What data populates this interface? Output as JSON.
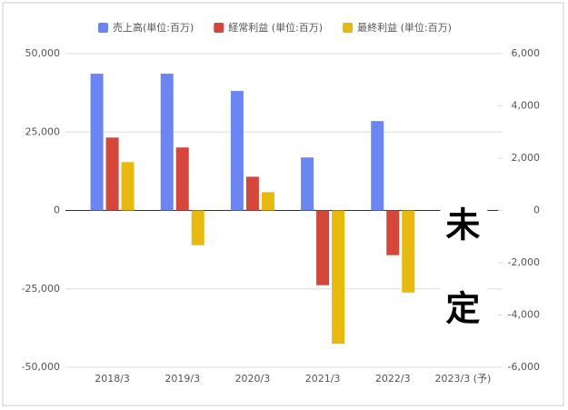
{
  "chart_data": {
    "type": "bar",
    "categories": [
      "2018/3",
      "2019/3",
      "2020/3",
      "2021/3",
      "2022/3",
      "2023/3 (予)"
    ],
    "series": [
      {
        "name": "売上高(単位:百万)",
        "color": "#6b86f0",
        "values": [
          43600,
          43600,
          38100,
          16900,
          28500,
          null
        ]
      },
      {
        "name": "経常利益 (単位:百万)",
        "color": "#d5463b",
        "axis": "y2",
        "values": [
          2790,
          2410,
          1290,
          -2860,
          -1710,
          null
        ]
      },
      {
        "name": "最終利益 (単位:百万)",
        "color": "#e8b90f",
        "axis": "y2",
        "values": [
          1850,
          -1330,
          700,
          -5100,
          -3140,
          null
        ]
      }
    ],
    "ylim": [
      -50000,
      50000
    ],
    "yticks": [
      {
        "value": -50000,
        "label": "-50,000"
      },
      {
        "value": -25000,
        "label": "-25,000"
      },
      0,
      {
        "value": 25000,
        "label": "25,000"
      },
      {
        "value": 50000,
        "label": "50,000"
      }
    ],
    "y2lim": [
      -6000,
      6000
    ],
    "y2ticks": [
      {
        "value": -6000,
        "label": "-6,000"
      },
      {
        "value": -4000,
        "label": "-4,000"
      },
      {
        "value": -2000,
        "label": "-2,000"
      },
      0,
      {
        "value": 2000,
        "label": "2,000"
      },
      {
        "value": 4000,
        "label": "4,000"
      },
      {
        "value": 6000,
        "label": "6,000"
      }
    ],
    "grid": true,
    "legend": "top",
    "annotations": [
      "未",
      "定"
    ]
  }
}
